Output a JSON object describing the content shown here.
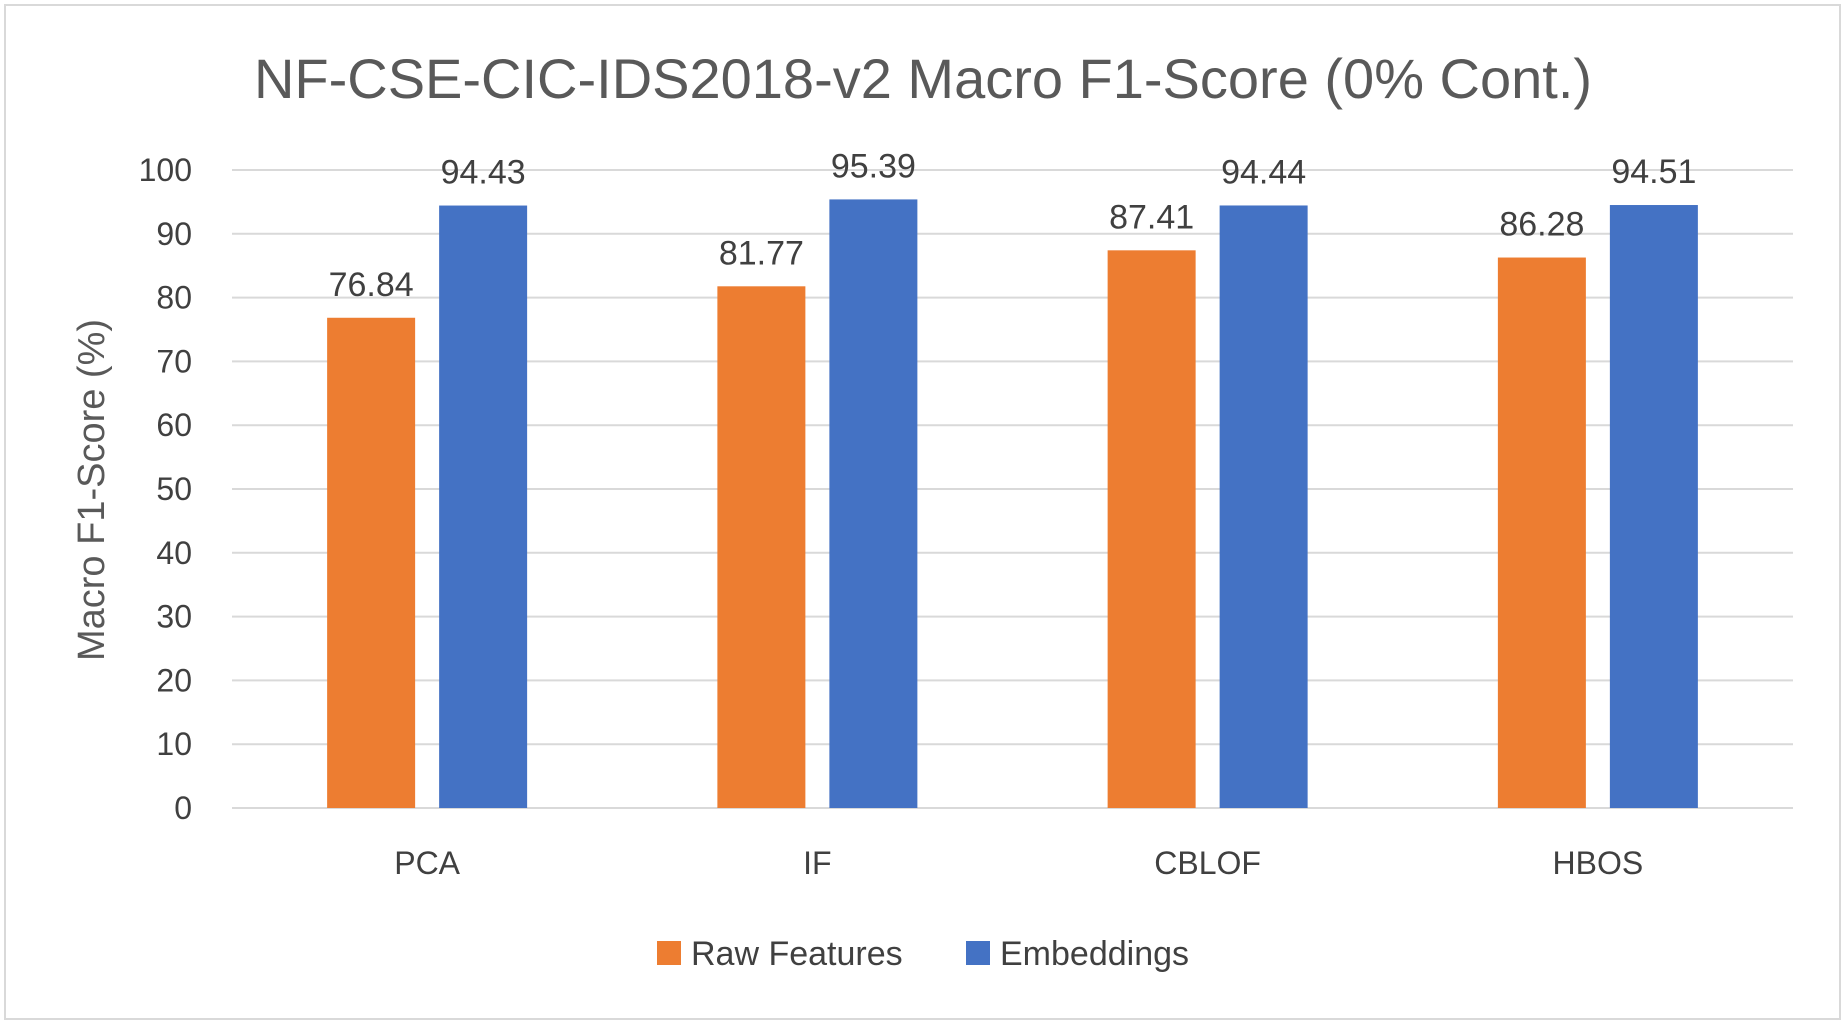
{
  "chart_data": {
    "type": "bar",
    "title": "NF-CSE-CIC-IDS2018-v2 Macro F1-Score (0% Cont.)",
    "xlabel": "",
    "ylabel": "Macro F1-Score (%)",
    "categories": [
      "PCA",
      "IF",
      "CBLOF",
      "HBOS"
    ],
    "series": [
      {
        "name": "Raw Features",
        "color": "#ED7D31",
        "values": [
          76.84,
          81.77,
          87.41,
          86.28
        ]
      },
      {
        "name": "Embeddings",
        "color": "#4472C4",
        "values": [
          94.43,
          95.39,
          94.44,
          94.51
        ]
      }
    ],
    "ylim": [
      0,
      100
    ],
    "yticks": [
      "0",
      "10",
      "20",
      "30",
      "40",
      "50",
      "60",
      "70",
      "80",
      "90",
      "100"
    ],
    "grid": true,
    "legend": "bottom"
  }
}
